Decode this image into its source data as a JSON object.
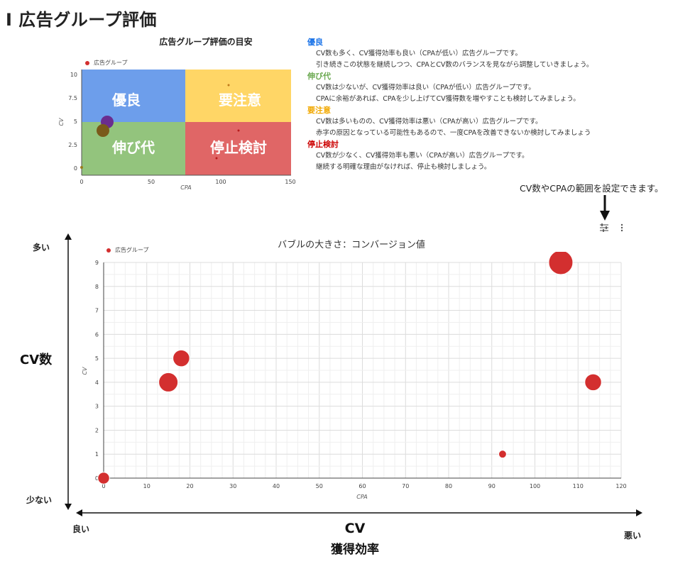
{
  "page": {
    "title": "I 広告グループ評価"
  },
  "mini_chart": {
    "title": "広告グループ評価の目安",
    "legend": "広告グループ",
    "xlabel": "CPA",
    "ylabel": "CV",
    "x_ticks": [
      "0",
      "50",
      "100",
      "150"
    ],
    "y_ticks": [
      "0",
      "2.5",
      "5",
      "7.5",
      "10"
    ],
    "quadrants": {
      "top_left": "優良",
      "top_right": "要注意",
      "bottom_left": "伸び代",
      "bottom_right": "停止検討"
    },
    "colors": {
      "top_left": "#6d9eeb",
      "top_right": "#ffd666",
      "bottom_left": "#93c47d",
      "bottom_right": "#e06666",
      "marker": "#d32f2f",
      "bubble_purple": "#6a2d8f",
      "bubble_brown": "#7a5a1a"
    }
  },
  "descriptions": [
    {
      "heading": "優良",
      "color": "#1a73e8",
      "lines": [
        "CV数も多く、CV獲得効率も良い（CPAが低い）広告グループです。",
        "引き続きこの状態を継続しつつ、CPAとCV数のバランスを見ながら調整していきましょう。"
      ]
    },
    {
      "heading": "伸び代",
      "color": "#6aa84f",
      "lines": [
        "CV数は少ないが、CV獲得効率は良い（CPAが低い）広告グループです。",
        "CPAに余裕があれば、CPAを少し上げてCV獲得数を増やすことも検討してみましょう。"
      ]
    },
    {
      "heading": "要注意",
      "color": "#f1a800",
      "lines": [
        "CV数は多いものの、CV獲得効率は悪い（CPAが高い）広告グループです。",
        "赤字の原因となっている可能性もあるので、一度CPAを改善できないか検討してみましょう"
      ]
    },
    {
      "heading": "停止検討",
      "color": "#cc0000",
      "lines": [
        "CV数が少なく、CV獲得効率も悪い（CPAが高い）広告グループです。",
        "継続する明確な理由がなければ、停止も検討しましょう。"
      ]
    }
  ],
  "note": "CV数やCPAの範囲を設定できます。",
  "main_chart": {
    "title": "バブルの大きさ：コンバージョン値",
    "legend": "広告グループ",
    "xlabel": "CPA",
    "ylabel": "CV"
  },
  "side_labels": {
    "y_top": "多い",
    "y_bottom": "少ない",
    "y_title": "CV数",
    "x_left": "良い",
    "x_right": "悪い",
    "x_title": "CV",
    "x_subtitle": "獲得効率"
  },
  "icons": {
    "filter": "sliders-icon",
    "menu": "more-vert-icon",
    "arrow": "arrow-down-icon"
  },
  "chart_data": {
    "type": "scatter",
    "title": "バブルの大きさ：コンバージョン値",
    "xlabel": "CPA",
    "ylabel": "CV",
    "xlim": [
      0,
      120
    ],
    "ylim": [
      0,
      9
    ],
    "x_ticks": [
      0,
      10,
      20,
      30,
      40,
      50,
      60,
      70,
      80,
      90,
      100,
      110,
      120
    ],
    "y_ticks": [
      0,
      1,
      2,
      3,
      4,
      5,
      6,
      7,
      8,
      9
    ],
    "grid": true,
    "legend": "top-left",
    "series": [
      {
        "name": "広告グループ",
        "color": "#d32f2f",
        "points": [
          {
            "x": 0,
            "y": 0,
            "size": 1.5
          },
          {
            "x": 15,
            "y": 4,
            "size": 3
          },
          {
            "x": 18,
            "y": 5,
            "size": 2.5
          },
          {
            "x": 92.5,
            "y": 1,
            "size": 0.7
          },
          {
            "x": 106,
            "y": 9,
            "size": 4
          },
          {
            "x": 113.5,
            "y": 4,
            "size": 2.5
          }
        ]
      }
    ]
  }
}
